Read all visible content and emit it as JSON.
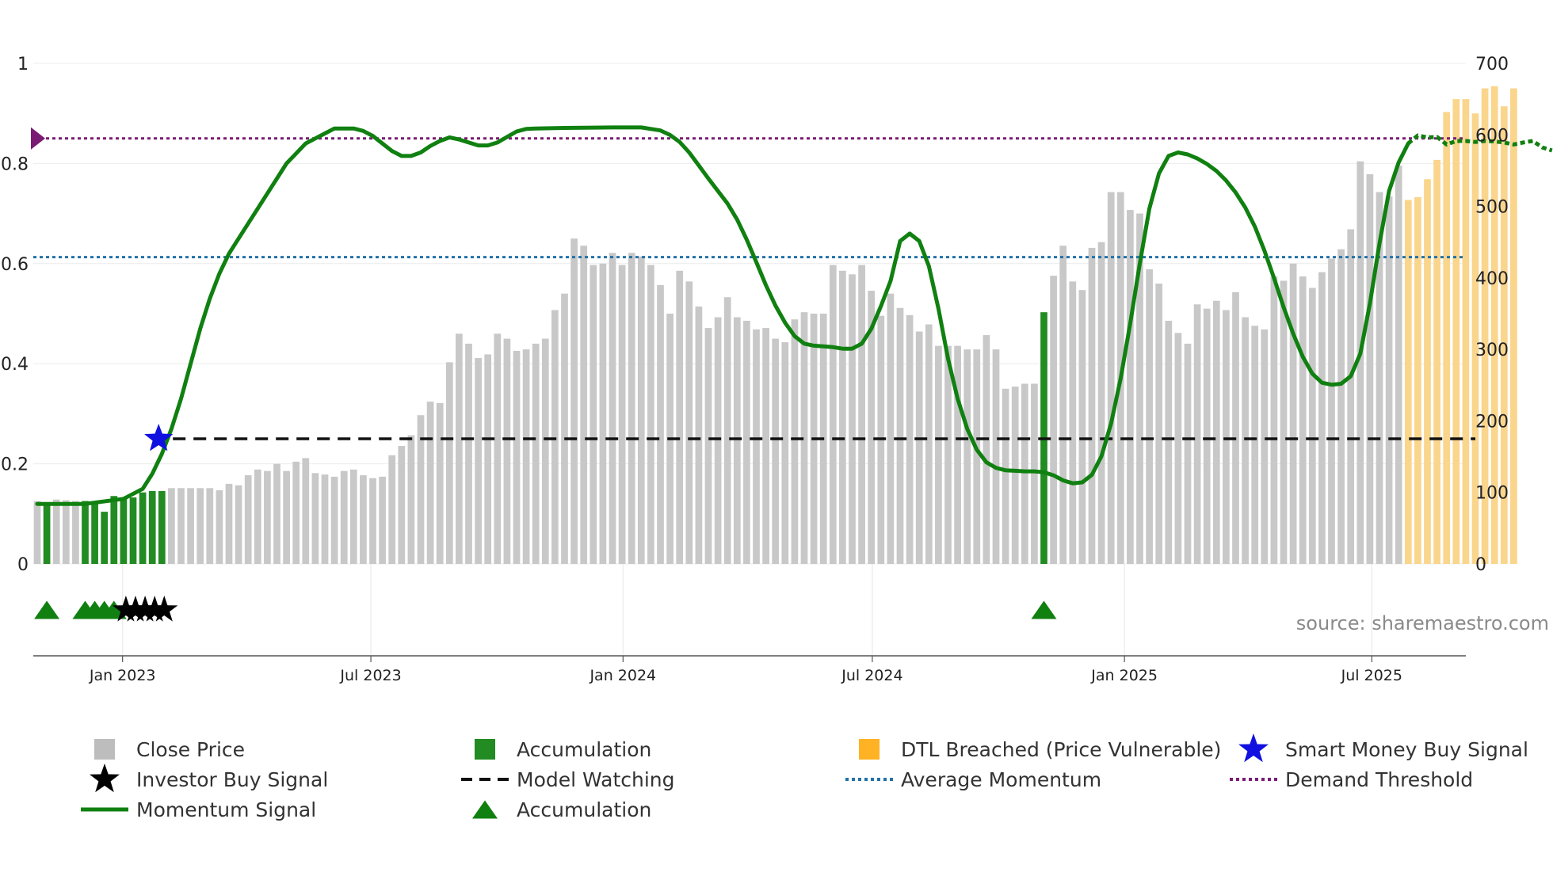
{
  "chart_data": {
    "type": "bar+line",
    "title": "",
    "source_label": "source: sharemaestro.com",
    "y_left": {
      "range": [
        0,
        1
      ],
      "ticks": [
        0,
        0.2,
        0.4,
        0.6,
        0.8,
        1
      ],
      "tick_labels": [
        "0",
        "0.2",
        "0.4",
        "0.6",
        "0.8",
        "1"
      ]
    },
    "y_right": {
      "range": [
        0,
        700
      ],
      "ticks": [
        0,
        100,
        200,
        300,
        400,
        500,
        600,
        700
      ],
      "tick_labels": [
        "0",
        "100",
        "200",
        "300",
        "400",
        "500",
        "600",
        "700"
      ]
    },
    "x_axis": {
      "start": "2022-11-10",
      "weeks": 152,
      "ticks": [
        {
          "label": "Jan 2023",
          "week": 8.9
        },
        {
          "label": "Jul 2023",
          "week": 34.8
        },
        {
          "label": "Jan 2024",
          "week": 61.1
        },
        {
          "label": "Jul 2024",
          "week": 87.1
        },
        {
          "label": "Jan 2025",
          "week": 113.4
        },
        {
          "label": "Jul 2025",
          "week": 139.2
        }
      ]
    },
    "close_prices": [
      88,
      82,
      90,
      89,
      88,
      88,
      84,
      73,
      95,
      91,
      93,
      100,
      102,
      102,
      106,
      106,
      106,
      106,
      106,
      103,
      112,
      110,
      124,
      132,
      130,
      140,
      130,
      143,
      148,
      127,
      125,
      122,
      130,
      132,
      124,
      120,
      122,
      152,
      165,
      180,
      208,
      227,
      225,
      282,
      322,
      308,
      288,
      293,
      322,
      315,
      298,
      300,
      308,
      315,
      355,
      378,
      455,
      445,
      418,
      420,
      435,
      418,
      435,
      430,
      418,
      390,
      350,
      410,
      395,
      360,
      330,
      345,
      373,
      345,
      340,
      328,
      330,
      315,
      310,
      342,
      352,
      350,
      350,
      418,
      410,
      405,
      418,
      382,
      347,
      378,
      358,
      348,
      325,
      335,
      305,
      305,
      305,
      300,
      300,
      320,
      300,
      245,
      248,
      252,
      252,
      352,
      403,
      445,
      395,
      383,
      442,
      450,
      520,
      520,
      495,
      490,
      412,
      392,
      340,
      323,
      308,
      363,
      357,
      368,
      355,
      380,
      345,
      333,
      328,
      402,
      396,
      420,
      402,
      386,
      408,
      427,
      440,
      468,
      563,
      545,
      520,
      514,
      557,
      509,
      513,
      538,
      565,
      632,
      650,
      650,
      630,
      665,
      668,
      640,
      665
    ],
    "bar_categories": [
      {
        "name": "accumulation",
        "weeks": [
          1,
          5,
          6,
          7,
          8,
          9,
          10,
          11,
          12,
          13,
          105
        ]
      },
      {
        "name": "dtl_breached",
        "weeks_from": 143
      }
    ],
    "momentum": [
      [
        0,
        0.12
      ],
      [
        5,
        0.12
      ],
      [
        9,
        0.13
      ],
      [
        11,
        0.15
      ],
      [
        12,
        0.18
      ],
      [
        13,
        0.22
      ],
      [
        14,
        0.27
      ],
      [
        15,
        0.33
      ],
      [
        16,
        0.4
      ],
      [
        17,
        0.47
      ],
      [
        18,
        0.53
      ],
      [
        19,
        0.58
      ],
      [
        20,
        0.62
      ],
      [
        21,
        0.65
      ],
      [
        22,
        0.68
      ],
      [
        23,
        0.71
      ],
      [
        24,
        0.74
      ],
      [
        25,
        0.77
      ],
      [
        26,
        0.8
      ],
      [
        27,
        0.82
      ],
      [
        28,
        0.84
      ],
      [
        29,
        0.85
      ],
      [
        30,
        0.86
      ],
      [
        31,
        0.87
      ],
      [
        32,
        0.87
      ],
      [
        33,
        0.87
      ],
      [
        34,
        0.865
      ],
      [
        35,
        0.855
      ],
      [
        36,
        0.84
      ],
      [
        37,
        0.825
      ],
      [
        38,
        0.815
      ],
      [
        39,
        0.815
      ],
      [
        40,
        0.822
      ],
      [
        41,
        0.835
      ],
      [
        42,
        0.845
      ],
      [
        43,
        0.852
      ],
      [
        44,
        0.848
      ],
      [
        45,
        0.842
      ],
      [
        46,
        0.836
      ],
      [
        47,
        0.836
      ],
      [
        48,
        0.842
      ],
      [
        49,
        0.853
      ],
      [
        50,
        0.864
      ],
      [
        51,
        0.869
      ],
      [
        52,
        0.87
      ],
      [
        55,
        0.871
      ],
      [
        60,
        0.872
      ],
      [
        63,
        0.872
      ],
      [
        65,
        0.866
      ],
      [
        66,
        0.857
      ],
      [
        67,
        0.843
      ],
      [
        68,
        0.822
      ],
      [
        69,
        0.796
      ],
      [
        70,
        0.77
      ],
      [
        71,
        0.745
      ],
      [
        72,
        0.72
      ],
      [
        73,
        0.688
      ],
      [
        74,
        0.648
      ],
      [
        75,
        0.603
      ],
      [
        76,
        0.557
      ],
      [
        77,
        0.516
      ],
      [
        78,
        0.482
      ],
      [
        79,
        0.455
      ],
      [
        80,
        0.44
      ],
      [
        81,
        0.436
      ],
      [
        83,
        0.433
      ],
      [
        84,
        0.43
      ],
      [
        85,
        0.43
      ],
      [
        86,
        0.44
      ],
      [
        87,
        0.47
      ],
      [
        88,
        0.515
      ],
      [
        89,
        0.565
      ],
      [
        90,
        0.645
      ],
      [
        91,
        0.66
      ],
      [
        92,
        0.645
      ],
      [
        93,
        0.595
      ],
      [
        94,
        0.51
      ],
      [
        95,
        0.41
      ],
      [
        96,
        0.33
      ],
      [
        97,
        0.27
      ],
      [
        98,
        0.228
      ],
      [
        99,
        0.203
      ],
      [
        100,
        0.192
      ],
      [
        101,
        0.187
      ],
      [
        102,
        0.186
      ],
      [
        103,
        0.185
      ],
      [
        104,
        0.185
      ],
      [
        105,
        0.183
      ],
      [
        106,
        0.177
      ],
      [
        107,
        0.167
      ],
      [
        108,
        0.161
      ],
      [
        109,
        0.163
      ],
      [
        110,
        0.178
      ],
      [
        111,
        0.215
      ],
      [
        112,
        0.28
      ],
      [
        113,
        0.37
      ],
      [
        114,
        0.48
      ],
      [
        115,
        0.6
      ],
      [
        116,
        0.71
      ],
      [
        117,
        0.78
      ],
      [
        118,
        0.815
      ],
      [
        119,
        0.822
      ],
      [
        120,
        0.818
      ],
      [
        121,
        0.81
      ],
      [
        122,
        0.799
      ],
      [
        123,
        0.785
      ],
      [
        124,
        0.766
      ],
      [
        125,
        0.742
      ],
      [
        126,
        0.712
      ],
      [
        127,
        0.674
      ],
      [
        128,
        0.626
      ],
      [
        129,
        0.571
      ],
      [
        130,
        0.513
      ],
      [
        131,
        0.46
      ],
      [
        132,
        0.414
      ],
      [
        133,
        0.38
      ],
      [
        134,
        0.362
      ],
      [
        135,
        0.358
      ],
      [
        136,
        0.36
      ],
      [
        137,
        0.375
      ],
      [
        138,
        0.42
      ],
      [
        139,
        0.52
      ],
      [
        140,
        0.64
      ],
      [
        141,
        0.745
      ],
      [
        142,
        0.802
      ],
      [
        143,
        0.84
      ],
      [
        144,
        0.856
      ],
      [
        145,
        0.852
      ],
      [
        146,
        0.853
      ],
      [
        147,
        0.838
      ],
      [
        148,
        0.845
      ],
      [
        149,
        0.845
      ],
      [
        150,
        0.843
      ],
      [
        151,
        0.845
      ],
      [
        152,
        0.844
      ],
      [
        153,
        0.842
      ],
      [
        154,
        0.838
      ],
      [
        155,
        0.842
      ],
      [
        156,
        0.845
      ],
      [
        157,
        0.832
      ],
      [
        158,
        0.826
      ]
    ],
    "momentum_dashed_from_week": 143,
    "model_watching": {
      "y": 0.25,
      "from_week": 12,
      "to_week": 150
    },
    "average_momentum": 0.613,
    "demand_threshold": 0.85,
    "smart_money_buy_signal": {
      "week": 12,
      "y": 0.25
    },
    "markers": {
      "accumulation_weeks": [
        1,
        5,
        6,
        7,
        8,
        105
      ],
      "investor_buy_weeks": [
        9,
        10,
        11,
        12,
        13
      ]
    },
    "legend": [
      {
        "key": "close",
        "label": "Close Price"
      },
      {
        "key": "acc_bar",
        "label": "Accumulation"
      },
      {
        "key": "dtl",
        "label": "DTL Breached (Price Vulnerable)"
      },
      {
        "key": "smart_money",
        "label": "Smart Money Buy Signal"
      },
      {
        "key": "investor",
        "label": "Investor Buy Signal"
      },
      {
        "key": "model_watching",
        "label": "Model Watching"
      },
      {
        "key": "avg_momentum",
        "label": "Average Momentum"
      },
      {
        "key": "demand",
        "label": "Demand Threshold"
      },
      {
        "key": "momentum",
        "label": "Momentum Signal"
      },
      {
        "key": "acc_marker",
        "label": "Accumulation"
      }
    ],
    "colors": {
      "close": "#c8c8c8",
      "accumulation": "#228b22",
      "dtl": "#fad58c",
      "dtl_legend": "#ffb224",
      "momentum": "#108010",
      "model_watching": "#111111",
      "average_momentum": "#2271a8",
      "demand_threshold": "#7a1c74",
      "smart_money": "#1010e0",
      "investor": "#000000",
      "accumulation_marker": "#108010"
    }
  }
}
